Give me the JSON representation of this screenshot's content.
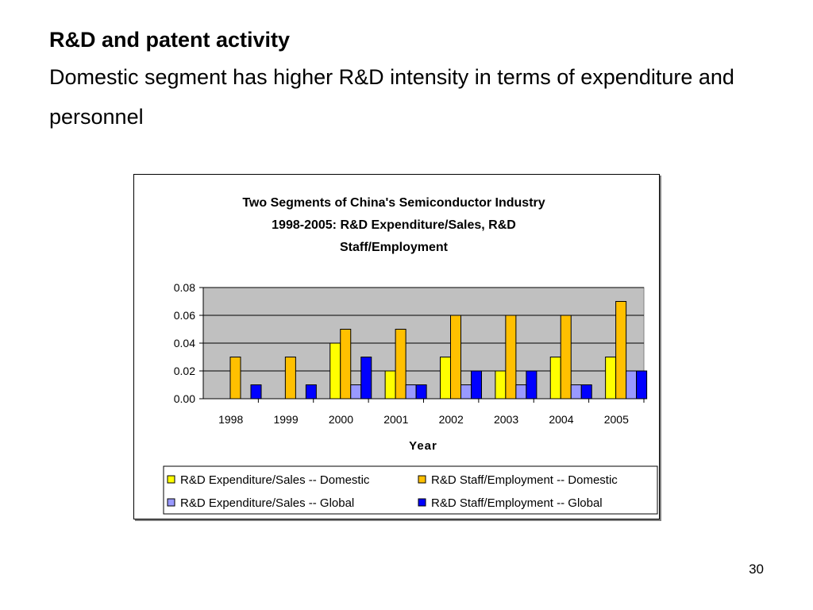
{
  "slide": {
    "title": "R&D and patent activity",
    "subtitle": "Domestic segment has higher R&D intensity in terms of expenditure and personnel",
    "page_number": "30"
  },
  "chart_data": {
    "type": "bar",
    "title_lines": [
      "Two Segments of China's Semiconductor Industry",
      "1998-2005: R&D Expenditure/Sales, R&D",
      "Staff/Employment"
    ],
    "xlabel": "Year",
    "ylabel": "",
    "ylim": [
      0,
      0.08
    ],
    "yticks": [
      "0.00",
      "0.02",
      "0.04",
      "0.06",
      "0.08"
    ],
    "categories": [
      "1998",
      "1999",
      "2000",
      "2001",
      "2002",
      "2003",
      "2004",
      "2005"
    ],
    "grid": true,
    "legend_position": "bottom",
    "series": [
      {
        "name": "R&D Expenditure/Sales -- Domestic",
        "color": "#FFFF00",
        "values": [
          0,
          0,
          0.04,
          0.02,
          0.03,
          0.02,
          0.03,
          0.03
        ]
      },
      {
        "name": "R&D Staff/Employment -- Domestic",
        "color": "#FFC000",
        "values": [
          0.03,
          0.03,
          0.05,
          0.05,
          0.06,
          0.06,
          0.06,
          0.07
        ]
      },
      {
        "name": "R&D Expenditure/Sales -- Global",
        "color": "#9999FF",
        "values": [
          0,
          0,
          0.01,
          0.01,
          0.01,
          0.01,
          0.01,
          0.02
        ]
      },
      {
        "name": "R&D Staff/Employment -- Global",
        "color": "#0000FF",
        "values": [
          0.01,
          0.01,
          0.03,
          0.01,
          0.02,
          0.02,
          0.01,
          0.02
        ]
      }
    ],
    "plot_background": "#C0C0C0"
  }
}
